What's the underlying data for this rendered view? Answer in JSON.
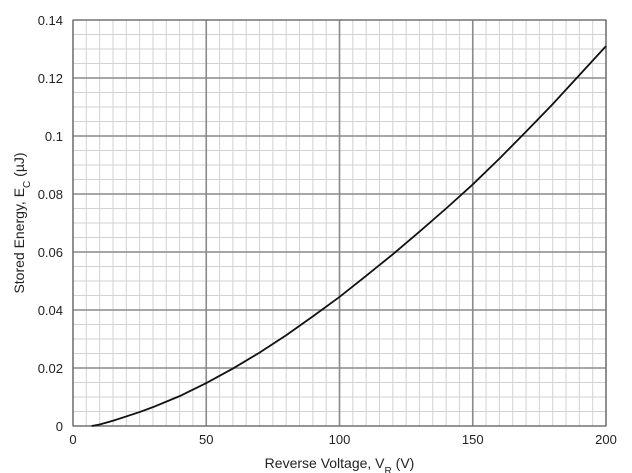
{
  "chart_data": {
    "type": "line",
    "title": "",
    "xlabel": "Reverse Voltage, V",
    "xlabel_sub": "R",
    "xlabel_unit": " (V)",
    "ylabel": "Stored Energy, E",
    "ylabel_sub": "C",
    "ylabel_unit": " (µJ)",
    "xlim": [
      0,
      200
    ],
    "ylim": [
      0,
      0.14
    ],
    "x_ticks": [
      0,
      50,
      100,
      150,
      200
    ],
    "x_tick_labels": [
      "0",
      "50",
      "100",
      "150",
      "200"
    ],
    "y_ticks": [
      0,
      0.02,
      0.04,
      0.06,
      0.08,
      0.1,
      0.12,
      0.14
    ],
    "y_tick_labels": [
      "0",
      "0.02",
      "0.04",
      "0.06",
      "0.08",
      "0.1",
      "0.12",
      "0.14"
    ],
    "grid": true,
    "legend": "none",
    "series": [
      {
        "x": [
          7,
          10,
          15,
          20,
          25,
          30,
          40,
          50,
          60,
          70,
          80,
          90,
          100,
          110,
          120,
          130,
          140,
          150,
          160,
          170,
          180,
          190,
          200
        ],
        "y": [
          0,
          0.0005,
          0.0018,
          0.0033,
          0.0048,
          0.0065,
          0.0103,
          0.0148,
          0.0198,
          0.0253,
          0.0313,
          0.0378,
          0.0445,
          0.0518,
          0.0592,
          0.067,
          0.075,
          0.0833,
          0.0922,
          0.1015,
          0.111,
          0.121,
          0.131
        ],
        "color": "#111111"
      }
    ]
  }
}
